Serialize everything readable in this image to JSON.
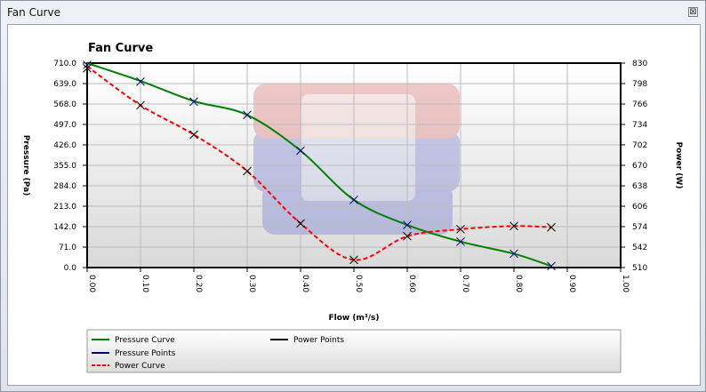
{
  "window": {
    "title": "Fan Curve",
    "close_glyph": "⊠"
  },
  "chart_data": {
    "type": "line",
    "title": "Fan Curve",
    "xlabel": "Flow (m³/s)",
    "ylabel_left": "Pressure (Pa)",
    "ylabel_right": "Power (W)",
    "xlim": [
      0,
      1.0
    ],
    "ylim_left": [
      0,
      710
    ],
    "ylim_right": [
      510,
      830
    ],
    "x_ticks": [
      "0.00",
      "0.10",
      "0.20",
      "0.30",
      "0.40",
      "0.50",
      "0.60",
      "0.70",
      "0.80",
      "0.90",
      "1.00"
    ],
    "y_left_ticks": [
      "0.0",
      "71.0",
      "142.0",
      "213.0",
      "284.0",
      "355.0",
      "426.0",
      "497.0",
      "568.0",
      "639.0",
      "710.0"
    ],
    "y_right_ticks": [
      "510",
      "542",
      "574",
      "606",
      "638",
      "670",
      "702",
      "734",
      "766",
      "798",
      "830"
    ],
    "grid": true,
    "legend_position": "bottom",
    "legend": [
      "Pressure Curve",
      "Pressure Points",
      "Power Curve",
      "Power Points"
    ],
    "colors": {
      "pressure": "#008000",
      "pressure_points": "#000080",
      "power": "#ff0000",
      "power_points": "#000000"
    },
    "series": [
      {
        "name": "Pressure Curve",
        "axis": "left",
        "style": "solid",
        "x": [
          0,
          0.1,
          0.2,
          0.3,
          0.4,
          0.5,
          0.6,
          0.7,
          0.8,
          0.87
        ],
        "y": [
          710,
          648,
          578,
          530,
          406,
          235,
          148,
          90,
          48,
          5
        ]
      },
      {
        "name": "Pressure Points",
        "axis": "left",
        "marker": "x",
        "x": [
          0,
          0.1,
          0.2,
          0.3,
          0.4,
          0.5,
          0.6,
          0.7,
          0.8,
          0.87
        ],
        "y": [
          704,
          646,
          576,
          530,
          406,
          235,
          148,
          90,
          48,
          5
        ]
      },
      {
        "name": "Power Curve",
        "axis": "right",
        "style": "dashed",
        "x": [
          0,
          0.1,
          0.2,
          0.3,
          0.4,
          0.5,
          0.6,
          0.7,
          0.8,
          0.87
        ],
        "y": [
          825,
          764,
          718,
          661,
          579,
          522,
          559,
          570,
          575,
          573
        ]
      },
      {
        "name": "Power Points",
        "axis": "right",
        "marker": "x",
        "x": [
          0,
          0.1,
          0.2,
          0.3,
          0.4,
          0.5,
          0.6,
          0.7,
          0.8,
          0.87
        ],
        "y": [
          822,
          764,
          718,
          661,
          579,
          522,
          559,
          570,
          575,
          573
        ]
      }
    ]
  }
}
